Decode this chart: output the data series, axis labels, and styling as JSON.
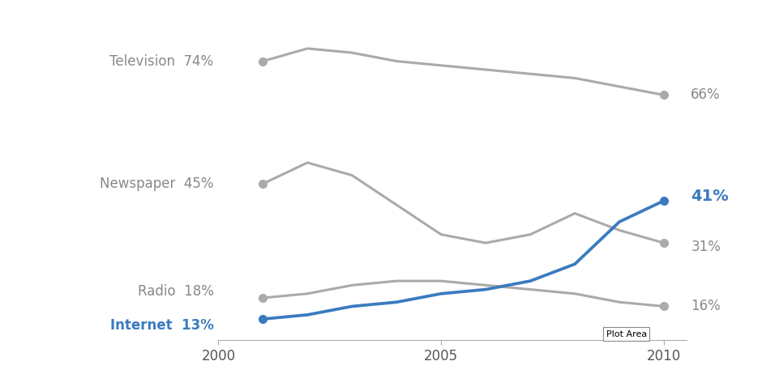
{
  "years": [
    2001,
    2002,
    2003,
    2004,
    2005,
    2006,
    2007,
    2008,
    2009,
    2010
  ],
  "television": [
    74,
    77,
    76,
    74,
    73,
    72,
    71,
    70,
    68,
    66
  ],
  "newspaper": [
    45,
    50,
    47,
    40,
    33,
    31,
    33,
    38,
    34,
    31
  ],
  "radio": [
    18,
    19,
    21,
    22,
    22,
    21,
    20,
    19,
    17,
    16
  ],
  "internet": [
    13,
    14,
    16,
    17,
    19,
    20,
    22,
    26,
    36,
    41
  ],
  "tv_color": "#aaaaaa",
  "news_color": "#aaaaaa",
  "radio_color": "#aaaaaa",
  "inet_color": "#3a7bbf",
  "bg_color": "#ffffff",
  "label_tv": "Television",
  "label_news": "Newspaper",
  "label_radio": "Radio",
  "label_inet": "Internet",
  "start_tv": "74%",
  "start_news": "45%",
  "start_radio": "18%",
  "start_inet": "13%",
  "end_tv": "66%",
  "end_news": "31%",
  "end_radio": "16%",
  "end_inet": "41%",
  "xmin": 2001,
  "xmax": 2010,
  "ymin": 8,
  "ymax": 82,
  "tick_years": [
    2000,
    2005,
    2010
  ]
}
